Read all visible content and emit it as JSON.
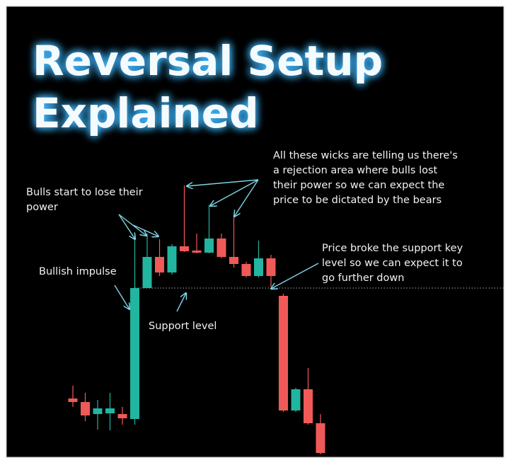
{
  "chart_data": {
    "type": "candlestick",
    "title": [
      "Reversal Setup",
      "Explained"
    ],
    "ylim": [
      0,
      430
    ],
    "up_color": "#22b5a0",
    "down_color": "#ef5a58",
    "open": [
      87,
      82,
      65,
      66,
      65,
      58,
      243,
      287,
      265,
      302,
      296,
      293,
      313,
      287,
      277,
      260,
      285,
      232,
      70,
      100,
      52
    ],
    "high": [
      105,
      95,
      85,
      95,
      75,
      320,
      320,
      312,
      305,
      388,
      320,
      360,
      320,
      345,
      280,
      310,
      290,
      235,
      102,
      130,
      65
    ],
    "low": [
      75,
      55,
      43,
      42,
      50,
      50,
      243,
      260,
      262,
      294,
      292,
      292,
      285,
      272,
      258,
      258,
      245,
      68,
      68,
      50,
      8
    ],
    "close": [
      82,
      63,
      73,
      73,
      59,
      243,
      287,
      265,
      302,
      295,
      293,
      313,
      287,
      277,
      260,
      285,
      260,
      70,
      100,
      52,
      10
    ],
    "support_level": 243,
    "annotations": [
      {
        "lines": [
          "All these wicks are telling us there's",
          "a rejection area where bulls lost",
          "their power so we can expect  the",
          "price to be dictated by the bears"
        ]
      },
      {
        "lines": [
          "Bulls start to lose their",
          "power"
        ]
      },
      {
        "lines": [
          "Bullish impulse"
        ]
      },
      {
        "lines": [
          "Support level"
        ]
      },
      {
        "lines": [
          "Price broke the support key",
          "level so we can expect  it to",
          "go further down"
        ]
      }
    ]
  }
}
